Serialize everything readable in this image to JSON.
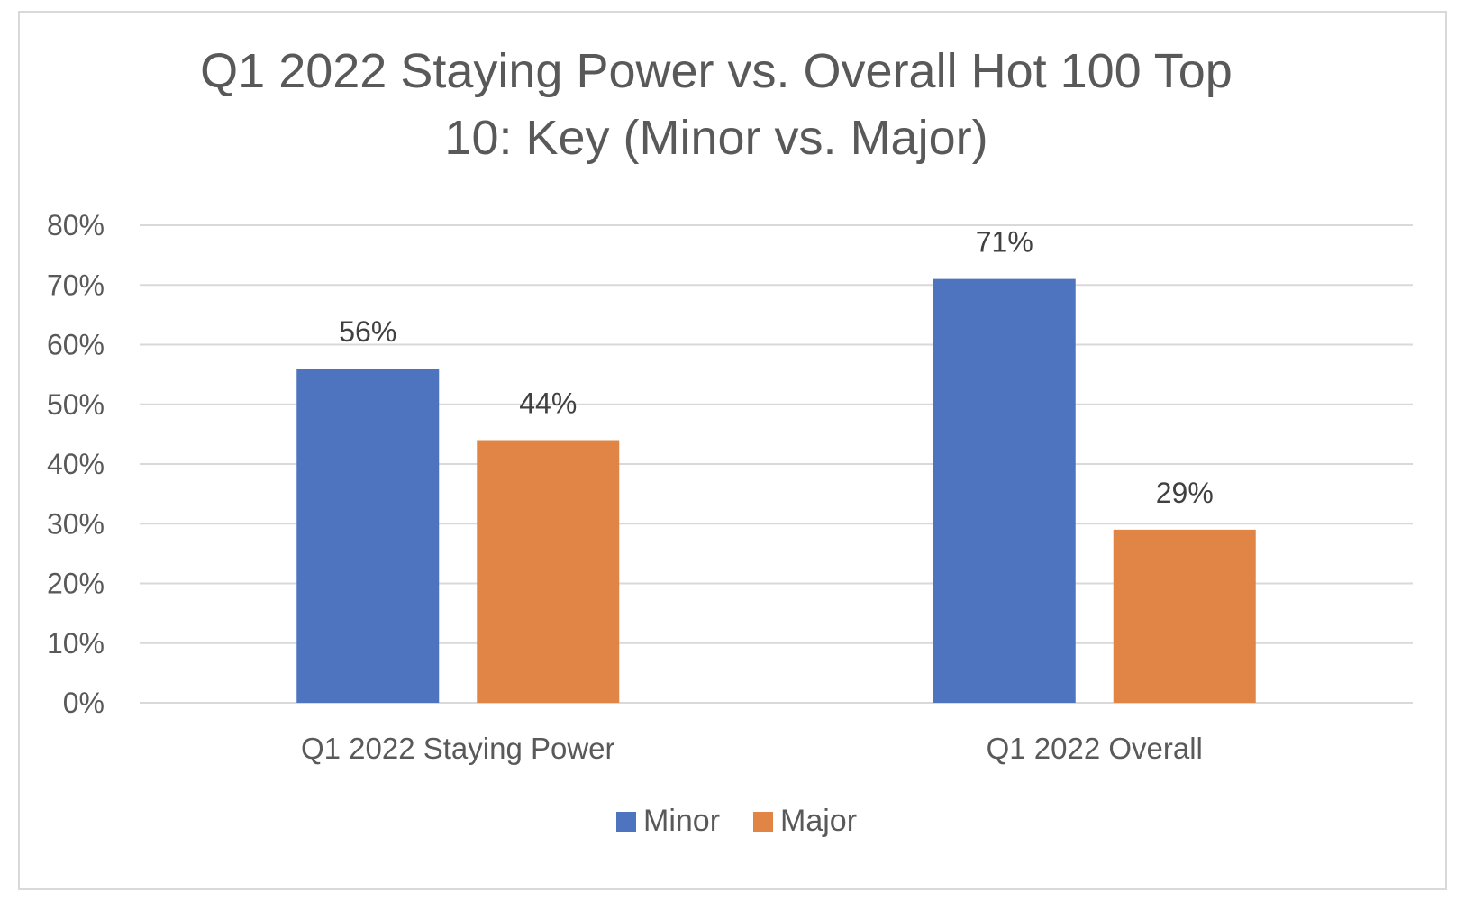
{
  "chart_data": {
    "type": "bar",
    "title": "Q1 2022 Staying Power vs. Overall Hot 100 Top 10: Key (Minor vs. Major)",
    "categories": [
      "Q1 2022 Staying Power",
      "Q1 2022 Overall"
    ],
    "series": [
      {
        "name": "Minor",
        "values": [
          56,
          71
        ],
        "labels": [
          "56%",
          "71%"
        ],
        "color": "#4e74bf"
      },
      {
        "name": "Major",
        "values": [
          44,
          29
        ],
        "labels": [
          "44%",
          "29%"
        ],
        "color": "#e08545"
      }
    ],
    "ylim": [
      0,
      80
    ],
    "yticks": [
      0,
      10,
      20,
      30,
      40,
      50,
      60,
      70,
      80
    ],
    "ytick_labels": [
      "0%",
      "10%",
      "20%",
      "30%",
      "40%",
      "50%",
      "60%",
      "70%",
      "80%"
    ],
    "xlabel": "",
    "ylabel": "",
    "grid": true,
    "legend_position": "bottom",
    "colors": {
      "gridline": "#d9d9d9",
      "text": "#595959",
      "frame": "#d9d9d9"
    }
  }
}
